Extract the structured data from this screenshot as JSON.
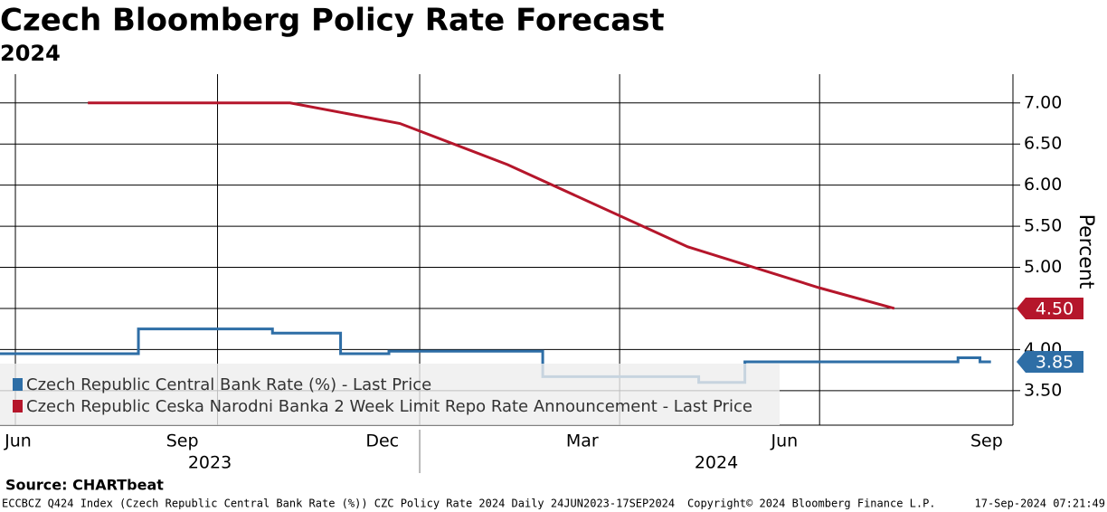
{
  "chart_data": {
    "type": "line",
    "title": "Czech Bloomberg Policy Rate Forecast",
    "subtitle": "2024",
    "y_label": "Percent",
    "xlim": [
      "2023-06-24",
      "2024-09-27"
    ],
    "ylim": [
      3.08,
      7.35
    ],
    "yticks": [
      {
        "value": 3.5,
        "label": "3.50"
      },
      {
        "value": 4,
        "label": "4.00"
      },
      {
        "value": 4.5,
        "label": "4.50"
      },
      {
        "value": 5,
        "label": "5.00"
      },
      {
        "value": 5.5,
        "label": "5.50"
      },
      {
        "value": 6,
        "label": "6.00"
      },
      {
        "value": 6.5,
        "label": "6.50"
      },
      {
        "value": 7,
        "label": "7.00"
      }
    ],
    "xticks": [
      {
        "value": "2023-06-15",
        "label": "Jun"
      },
      {
        "value": "2023-09-15",
        "label": "Sep"
      },
      {
        "value": "2023-12-15",
        "label": "Dec"
      },
      {
        "value": "2024-03-15",
        "label": "Mar"
      },
      {
        "value": "2024-06-15",
        "label": "Jun"
      },
      {
        "value": "2024-09-15",
        "label": "Sep"
      }
    ],
    "xgrid": [
      "2023-07-01",
      "2023-10-01",
      "2024-01-01",
      "2024-04-01",
      "2024-07-01"
    ],
    "year_labels": [
      "2023",
      "2024"
    ],
    "grid": true,
    "legend": "bottom-left",
    "series": [
      {
        "name": "Czech Republic Central Bank Rate (%) - Last Price",
        "color": "#2e6ea6",
        "step": true,
        "x": [
          "2023-06-24",
          "2023-08-26",
          "2023-10-26",
          "2023-11-26",
          "2023-12-18",
          "2024-02-26",
          "2024-05-07",
          "2024-05-28",
          "2024-09-02",
          "2024-09-12",
          "2024-09-17"
        ],
        "values": [
          3.95,
          4.25,
          4.2,
          3.95,
          3.98,
          3.67,
          3.6,
          3.85,
          3.9,
          3.85,
          3.85
        ],
        "last_value_label": "3.85"
      },
      {
        "name": "Czech Republic Ceska Narodni Banka 2 Week Limit Repo Rate Announcement - Last Price",
        "color": "#b5162b",
        "step": false,
        "x": [
          "2023-08-03",
          "2023-11-03",
          "2023-12-23",
          "2024-02-10",
          "2024-05-02",
          "2024-07-01",
          "2024-08-04"
        ],
        "values": [
          7,
          7,
          6.75,
          6.25,
          5.25,
          4.75,
          4.5
        ],
        "last_value_label": "4.50"
      }
    ],
    "source": "Source: CHARTbeat",
    "footer_left": "ECCBCZ Q424 Index (Czech Republic Central Bank Rate (%)) CZC Policy Rate 2024  Daily 24JUN2023-17SEP2024",
    "footer_center": "Copyright© 2024 Bloomberg Finance L.P.",
    "footer_right": "17-Sep-2024 07:21:49"
  }
}
